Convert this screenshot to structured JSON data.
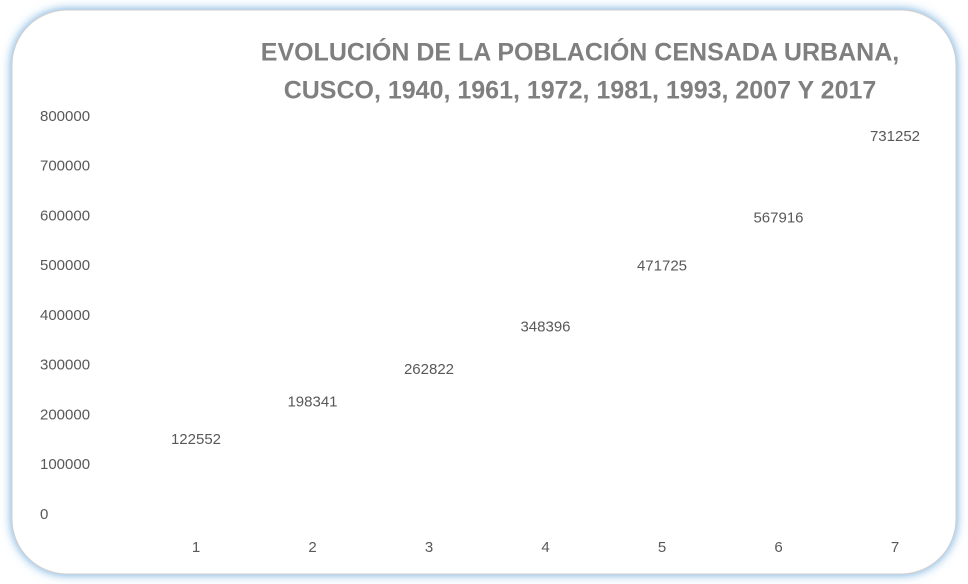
{
  "chart_data": {
    "type": "line",
    "title": [
      "EVOLUCIÓN DE LA POBLACIÓN CENSADA URBANA,",
      "CUSCO, 1940, 1961, 1972, 1981, 1993, 2007 Y 2017"
    ],
    "categories": [
      "1",
      "2",
      "3",
      "4",
      "5",
      "6",
      "7"
    ],
    "values": [
      122552,
      198341,
      262822,
      348396,
      471725,
      567916,
      731252
    ],
    "ylim": [
      0,
      800000
    ],
    "yticks": [
      0,
      100000,
      200000,
      300000,
      400000,
      500000,
      600000,
      700000,
      800000
    ],
    "grid": false
  }
}
